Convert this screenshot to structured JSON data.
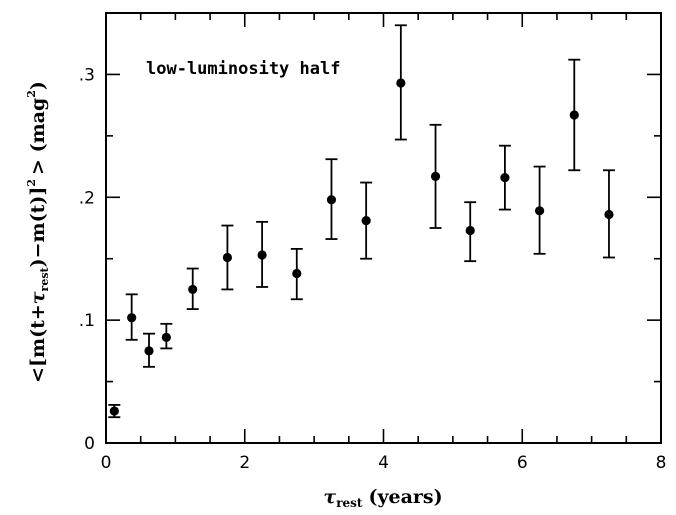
{
  "chart_data": {
    "type": "scatter",
    "title": "",
    "annotation": "low-luminosity half",
    "xlabel": {
      "symbol": "τ",
      "subscript": "rest",
      "rest": "(years)"
    },
    "ylabel": {
      "part1": "<[m(t+",
      "symbol": "τ",
      "subscript": "rest",
      "part2": ")−m(t)]",
      "sup": "2",
      "part3": "> (mag",
      "part4": ")"
    },
    "xlim": [
      0,
      8
    ],
    "ylim": [
      0,
      0.35
    ],
    "x_ticks": [
      {
        "value": 0,
        "label": "0"
      },
      {
        "value": 2,
        "label": "2"
      },
      {
        "value": 4,
        "label": "4"
      },
      {
        "value": 6,
        "label": "6"
      },
      {
        "value": 8,
        "label": "8"
      }
    ],
    "y_ticks": [
      {
        "value": 0,
        "label": "0"
      },
      {
        "value": 0.1,
        "label": ".1"
      },
      {
        "value": 0.2,
        "label": ".2"
      },
      {
        "value": 0.3,
        "label": ".3"
      }
    ],
    "x_minor_step": 0.5,
    "y_minor_step": 0.05,
    "grid": false,
    "points": [
      {
        "x": 0.12,
        "y": 0.026,
        "lo": 0.021,
        "hi": 0.031
      },
      {
        "x": 0.37,
        "y": 0.102,
        "lo": 0.084,
        "hi": 0.121
      },
      {
        "x": 0.62,
        "y": 0.075,
        "lo": 0.062,
        "hi": 0.089
      },
      {
        "x": 0.87,
        "y": 0.086,
        "lo": 0.077,
        "hi": 0.097
      },
      {
        "x": 1.25,
        "y": 0.125,
        "lo": 0.109,
        "hi": 0.142
      },
      {
        "x": 1.75,
        "y": 0.151,
        "lo": 0.125,
        "hi": 0.177
      },
      {
        "x": 2.25,
        "y": 0.153,
        "lo": 0.127,
        "hi": 0.18
      },
      {
        "x": 2.75,
        "y": 0.138,
        "lo": 0.117,
        "hi": 0.158
      },
      {
        "x": 3.25,
        "y": 0.198,
        "lo": 0.166,
        "hi": 0.231
      },
      {
        "x": 3.75,
        "y": 0.181,
        "lo": 0.15,
        "hi": 0.212
      },
      {
        "x": 4.25,
        "y": 0.293,
        "lo": 0.247,
        "hi": 0.34
      },
      {
        "x": 4.75,
        "y": 0.217,
        "lo": 0.175,
        "hi": 0.259
      },
      {
        "x": 5.25,
        "y": 0.173,
        "lo": 0.148,
        "hi": 0.196
      },
      {
        "x": 5.75,
        "y": 0.216,
        "lo": 0.19,
        "hi": 0.242
      },
      {
        "x": 6.25,
        "y": 0.189,
        "lo": 0.154,
        "hi": 0.225
      },
      {
        "x": 6.75,
        "y": 0.267,
        "lo": 0.222,
        "hi": 0.312
      },
      {
        "x": 7.25,
        "y": 0.186,
        "lo": 0.151,
        "hi": 0.222
      }
    ],
    "marker_color": "#000000"
  }
}
